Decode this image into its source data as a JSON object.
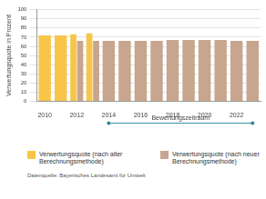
{
  "chart_data": {
    "type": "bar",
    "y_label": "Verwertungsquote in Prozent",
    "categories": [
      "2010",
      null,
      "2012",
      null,
      "2014",
      null,
      "2016",
      null,
      "2018",
      null,
      "2020",
      null,
      "2022",
      null
    ],
    "series": [
      {
        "name": "Verwertungsquote (nach alter Berechnungsmethode)",
        "color": "#f7c649",
        "values": [
          72,
          72,
          73,
          74,
          null,
          null,
          null,
          null,
          null,
          null,
          null,
          null,
          null,
          null
        ]
      },
      {
        "name": "Verwertungsquote (nach neuer Berechnungsmethode)",
        "color": "#c8a58e",
        "values": [
          null,
          null,
          66,
          66,
          66,
          66,
          66,
          66,
          67,
          67,
          67,
          67,
          66,
          66
        ]
      }
    ],
    "ylim": [
      0,
      100
    ],
    "yticks": [
      0,
      10,
      20,
      30,
      40,
      50,
      60,
      70,
      80,
      90,
      100
    ],
    "grid": true,
    "legend": "bottom",
    "annotations": [
      {
        "text": "Bewertungszeitraum",
        "range": [
          4,
          13
        ]
      }
    ],
    "source": "Datenquelle: Bayerisches Landesamt für Umwelt"
  }
}
